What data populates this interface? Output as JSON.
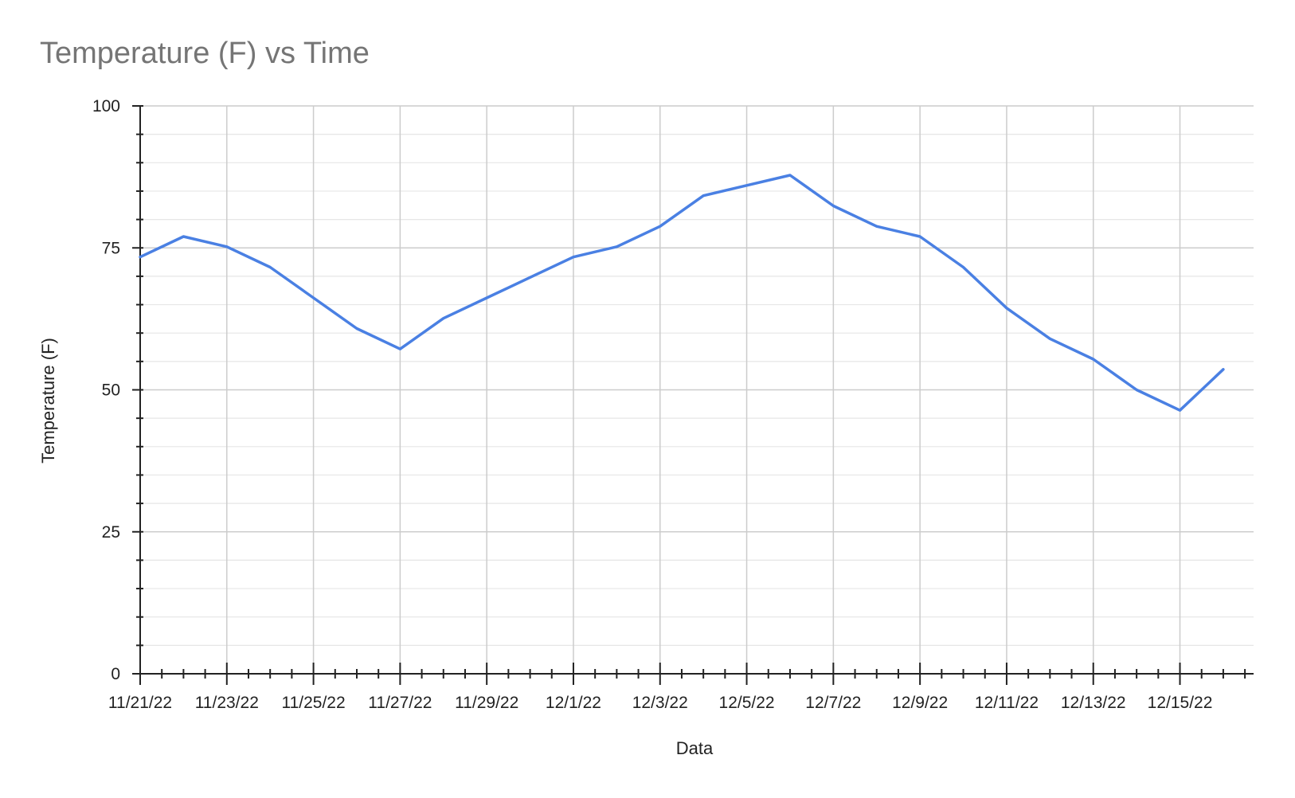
{
  "chart_data": {
    "type": "line",
    "title": "Temperature (F) vs Time",
    "xlabel": "Data",
    "ylabel": "Temperature (F)",
    "ylim": [
      0,
      100
    ],
    "yticks": [
      "0",
      "25",
      "50",
      "75",
      "100"
    ],
    "xticks": [
      "11/21/22",
      "11/23/22",
      "11/25/22",
      "11/27/22",
      "11/29/22",
      "12/1/22",
      "12/3/22",
      "12/5/22",
      "12/7/22",
      "12/9/22",
      "12/11/22",
      "12/13/22",
      "12/15/22"
    ],
    "x": [
      "11/21/22",
      "11/22/22",
      "11/23/22",
      "11/24/22",
      "11/25/22",
      "11/26/22",
      "11/27/22",
      "11/28/22",
      "11/29/22",
      "11/30/22",
      "12/1/22",
      "12/2/22",
      "12/3/22",
      "12/4/22",
      "12/5/22",
      "12/6/22",
      "12/7/22",
      "12/8/22",
      "12/9/22",
      "12/10/22",
      "12/11/22",
      "12/12/22",
      "12/13/22",
      "12/14/22",
      "12/15/22",
      "12/16/22"
    ],
    "series": [
      {
        "values": [
          73.4,
          77.0,
          75.2,
          71.6,
          66.2,
          60.8,
          57.2,
          62.6,
          66.2,
          69.8,
          73.4,
          75.2,
          78.8,
          84.2,
          86.0,
          87.8,
          82.4,
          78.8,
          77.0,
          71.6,
          64.4,
          59.0,
          55.4,
          50.0,
          46.4,
          53.6
        ],
        "color": "#4a80e3"
      }
    ],
    "grid": true,
    "legend": "none"
  }
}
